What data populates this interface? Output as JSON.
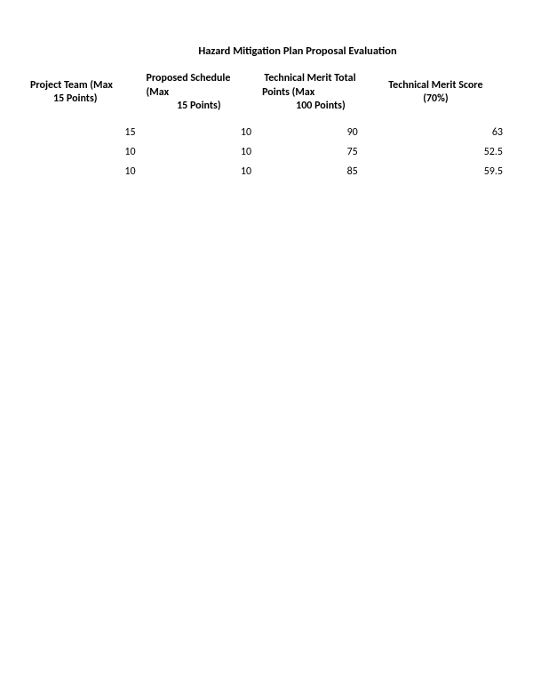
{
  "title": "Hazard Mitigation Plan Proposal Evaluation",
  "table": {
    "columns": [
      {
        "key": "project_team",
        "line1": "Project Team            (Max",
        "line2": "15 Points)"
      },
      {
        "key": "proposed_schedule",
        "line1": "Proposed Schedule (Max",
        "line2": "15 Points)"
      },
      {
        "key": "tech_merit_total",
        "line1": "Technical Merit Total",
        "line2": "Points                    (Max",
        "line3": "100 Points)"
      },
      {
        "key": "tech_merit_score",
        "line1": "Technical Merit Score",
        "line2": "(70%)"
      }
    ],
    "rows": [
      {
        "project_team": "15",
        "proposed_schedule": "10",
        "tech_merit_total": "90",
        "tech_merit_score": "63"
      },
      {
        "project_team": "10",
        "proposed_schedule": "10",
        "tech_merit_total": "75",
        "tech_merit_score": "52.5"
      },
      {
        "project_team": "10",
        "proposed_schedule": "10",
        "tech_merit_total": "85",
        "tech_merit_score": "59.5"
      }
    ]
  },
  "styling": {
    "background_color": "#ffffff",
    "text_color": "#000000",
    "title_fontsize": 12.5,
    "header_fontsize": 12,
    "cell_fontsize": 12,
    "font_family": "Calibri, Arial, sans-serif"
  }
}
